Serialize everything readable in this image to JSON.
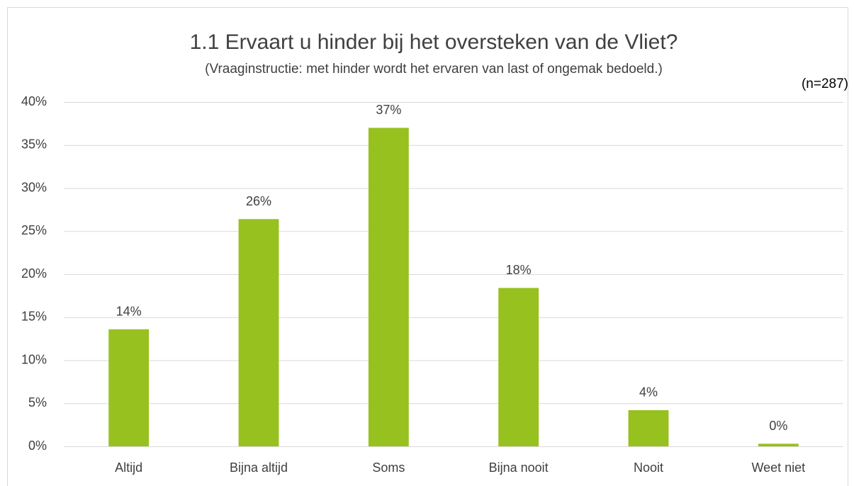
{
  "chart_data": {
    "type": "bar",
    "title": "1.1 Ervaart u hinder bij het oversteken van de Vliet?",
    "subtitle": "(Vraaginstructie: met hinder wordt het ervaren van last of ongemak bedoeld.)",
    "note": "(n=287)",
    "categories": [
      "Altijd",
      "Bijna altijd",
      "Soms",
      "Bijna nooit",
      "Nooit",
      "Weet niet"
    ],
    "values": [
      13.6,
      26.4,
      37.0,
      18.4,
      4.2,
      0.3
    ],
    "value_labels": [
      "14%",
      "26%",
      "37%",
      "18%",
      "4%",
      "0%"
    ],
    "color": "#97c11f",
    "ylim": [
      0,
      40
    ],
    "yticks": [
      {
        "value": 0,
        "label": "0%"
      },
      {
        "value": 5,
        "label": "5%"
      },
      {
        "value": 10,
        "label": "10%"
      },
      {
        "value": 15,
        "label": "15%"
      },
      {
        "value": 20,
        "label": "20%"
      },
      {
        "value": 25,
        "label": "25%"
      },
      {
        "value": 30,
        "label": "30%"
      },
      {
        "value": 35,
        "label": "35%"
      },
      {
        "value": 40,
        "label": "40%"
      }
    ],
    "grid": true
  }
}
